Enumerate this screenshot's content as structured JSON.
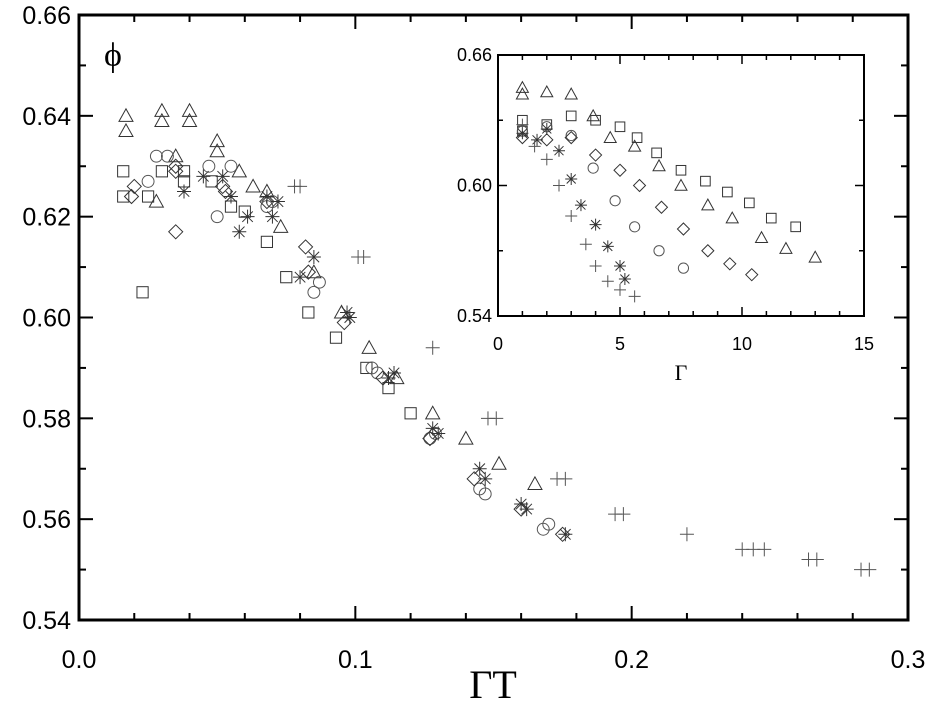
{
  "chart_data": [
    {
      "name": "main",
      "type": "scatter",
      "xlabel": "ΓT",
      "ylabel_annotation": "ϕ",
      "xlim": [
        0.0,
        0.3
      ],
      "ylim": [
        0.54,
        0.66
      ],
      "xticks": [
        "0.0",
        "0.1",
        "0.2",
        "0.3"
      ],
      "yticks": [
        "0.54",
        "0.56",
        "0.58",
        "0.60",
        "0.62",
        "0.64",
        "0.66"
      ],
      "grid": false,
      "series": [
        {
          "name": "triangles",
          "marker": "triangle",
          "color": "#333333",
          "points": [
            [
              0.017,
              0.64
            ],
            [
              0.017,
              0.637
            ],
            [
              0.03,
              0.641
            ],
            [
              0.03,
              0.639
            ],
            [
              0.04,
              0.641
            ],
            [
              0.04,
              0.639
            ],
            [
              0.05,
              0.635
            ],
            [
              0.05,
              0.633
            ],
            [
              0.058,
              0.629
            ],
            [
              0.063,
              0.626
            ],
            [
              0.068,
              0.625
            ],
            [
              0.073,
              0.618
            ],
            [
              0.085,
              0.609
            ],
            [
              0.095,
              0.601
            ],
            [
              0.105,
              0.594
            ],
            [
              0.115,
              0.588
            ],
            [
              0.128,
              0.581
            ],
            [
              0.14,
              0.576
            ],
            [
              0.152,
              0.571
            ],
            [
              0.165,
              0.567
            ],
            [
              0.028,
              0.623
            ],
            [
              0.035,
              0.632
            ]
          ]
        },
        {
          "name": "squares",
          "marker": "square",
          "color": "#333333",
          "points": [
            [
              0.016,
              0.624
            ],
            [
              0.016,
              0.629
            ],
            [
              0.023,
              0.605
            ],
            [
              0.025,
              0.624
            ],
            [
              0.038,
              0.627
            ],
            [
              0.048,
              0.627
            ],
            [
              0.055,
              0.622
            ],
            [
              0.06,
              0.621
            ],
            [
              0.068,
              0.615
            ],
            [
              0.075,
              0.608
            ],
            [
              0.083,
              0.601
            ],
            [
              0.093,
              0.596
            ],
            [
              0.104,
              0.59
            ],
            [
              0.112,
              0.586
            ],
            [
              0.12,
              0.581
            ],
            [
              0.038,
              0.629
            ],
            [
              0.03,
              0.629
            ]
          ]
        },
        {
          "name": "circles",
          "marker": "circle",
          "color": "#555555",
          "points": [
            [
              0.025,
              0.627
            ],
            [
              0.028,
              0.632
            ],
            [
              0.032,
              0.632
            ],
            [
              0.047,
              0.63
            ],
            [
              0.05,
              0.62
            ],
            [
              0.055,
              0.63
            ],
            [
              0.068,
              0.622
            ],
            [
              0.07,
              0.623
            ],
            [
              0.085,
              0.605
            ],
            [
              0.087,
              0.607
            ],
            [
              0.106,
              0.59
            ],
            [
              0.108,
              0.589
            ],
            [
              0.127,
              0.576
            ],
            [
              0.129,
              0.577
            ],
            [
              0.145,
              0.566
            ],
            [
              0.147,
              0.565
            ],
            [
              0.168,
              0.558
            ],
            [
              0.17,
              0.559
            ]
          ]
        },
        {
          "name": "diamonds",
          "marker": "diamond",
          "color": "#333333",
          "points": [
            [
              0.019,
              0.624
            ],
            [
              0.02,
              0.626
            ],
            [
              0.035,
              0.629
            ],
            [
              0.035,
              0.617
            ],
            [
              0.052,
              0.626
            ],
            [
              0.053,
              0.625
            ],
            [
              0.068,
              0.623
            ],
            [
              0.083,
              0.609
            ],
            [
              0.096,
              0.599
            ],
            [
              0.11,
              0.588
            ],
            [
              0.127,
              0.576
            ],
            [
              0.143,
              0.568
            ],
            [
              0.16,
              0.562
            ],
            [
              0.175,
              0.557
            ],
            [
              0.082,
              0.614
            ],
            [
              0.035,
              0.63
            ]
          ]
        },
        {
          "name": "asterisks",
          "marker": "asterisk",
          "color": "#333333",
          "points": [
            [
              0.038,
              0.625
            ],
            [
              0.045,
              0.628
            ],
            [
              0.055,
              0.624
            ],
            [
              0.058,
              0.617
            ],
            [
              0.061,
              0.62
            ],
            [
              0.068,
              0.624
            ],
            [
              0.07,
              0.62
            ],
            [
              0.072,
              0.623
            ],
            [
              0.08,
              0.608
            ],
            [
              0.085,
              0.612
            ],
            [
              0.098,
              0.6
            ],
            [
              0.097,
              0.601
            ],
            [
              0.112,
              0.588
            ],
            [
              0.114,
              0.589
            ],
            [
              0.128,
              0.578
            ],
            [
              0.13,
              0.577
            ],
            [
              0.145,
              0.57
            ],
            [
              0.147,
              0.568
            ],
            [
              0.16,
              0.563
            ],
            [
              0.162,
              0.562
            ],
            [
              0.176,
              0.557
            ],
            [
              0.052,
              0.628
            ]
          ]
        },
        {
          "name": "plus",
          "marker": "plus",
          "color": "#555555",
          "points": [
            [
              0.078,
              0.626
            ],
            [
              0.08,
              0.626
            ],
            [
              0.101,
              0.612
            ],
            [
              0.103,
              0.612
            ],
            [
              0.128,
              0.594
            ],
            [
              0.148,
              0.58
            ],
            [
              0.151,
              0.58
            ],
            [
              0.173,
              0.568
            ],
            [
              0.176,
              0.568
            ],
            [
              0.194,
              0.561
            ],
            [
              0.197,
              0.561
            ],
            [
              0.22,
              0.557
            ],
            [
              0.24,
              0.554
            ],
            [
              0.244,
              0.554
            ],
            [
              0.248,
              0.554
            ],
            [
              0.264,
              0.552
            ],
            [
              0.267,
              0.552
            ],
            [
              0.283,
              0.55
            ],
            [
              0.286,
              0.55
            ]
          ]
        }
      ]
    },
    {
      "name": "inset",
      "type": "scatter",
      "xlabel": "Γ",
      "xlim": [
        0,
        15
      ],
      "ylim": [
        0.54,
        0.66
      ],
      "xticks": [
        "0",
        "5",
        "10",
        "15"
      ],
      "yticks": [
        "0.54",
        "0.60",
        "0.66"
      ],
      "grid": false,
      "series": [
        {
          "name": "triangles",
          "marker": "triangle",
          "color": "#333333",
          "points": [
            [
              1.0,
              0.645
            ],
            [
              1.0,
              0.642
            ],
            [
              2.0,
              0.643
            ],
            [
              3.0,
              0.642
            ],
            [
              3.9,
              0.632
            ],
            [
              4.6,
              0.622
            ],
            [
              5.6,
              0.618
            ],
            [
              6.6,
              0.609
            ],
            [
              7.5,
              0.6
            ],
            [
              8.6,
              0.591
            ],
            [
              9.6,
              0.585
            ],
            [
              10.8,
              0.576
            ],
            [
              11.8,
              0.571
            ],
            [
              13.0,
              0.567
            ]
          ]
        },
        {
          "name": "squares",
          "marker": "square",
          "color": "#333333",
          "points": [
            [
              1.0,
              0.63
            ],
            [
              1.0,
              0.625
            ],
            [
              2.0,
              0.628
            ],
            [
              3.0,
              0.632
            ],
            [
              4.0,
              0.63
            ],
            [
              5.0,
              0.627
            ],
            [
              5.7,
              0.622
            ],
            [
              6.5,
              0.615
            ],
            [
              7.5,
              0.607
            ],
            [
              8.5,
              0.602
            ],
            [
              9.4,
              0.597
            ],
            [
              10.3,
              0.592
            ],
            [
              11.2,
              0.585
            ],
            [
              12.2,
              0.581
            ]
          ]
        },
        {
          "name": "circles",
          "marker": "circle",
          "color": "#555555",
          "points": [
            [
              1.0,
              0.625
            ],
            [
              2.0,
              0.627
            ],
            [
              3.0,
              0.623
            ],
            [
              3.9,
              0.608
            ],
            [
              4.8,
              0.593
            ],
            [
              5.6,
              0.581
            ],
            [
              6.6,
              0.57
            ],
            [
              7.6,
              0.562
            ]
          ]
        },
        {
          "name": "diamonds",
          "marker": "diamond",
          "color": "#333333",
          "points": [
            [
              1.0,
              0.622
            ],
            [
              2.0,
              0.621
            ],
            [
              3.0,
              0.622
            ],
            [
              4.0,
              0.614
            ],
            [
              5.0,
              0.607
            ],
            [
              5.8,
              0.6
            ],
            [
              6.7,
              0.59
            ],
            [
              7.6,
              0.58
            ],
            [
              8.6,
              0.57
            ],
            [
              9.5,
              0.564
            ],
            [
              10.4,
              0.559
            ]
          ]
        },
        {
          "name": "asterisks",
          "marker": "asterisk",
          "color": "#333333",
          "points": [
            [
              1.0,
              0.624
            ],
            [
              1.6,
              0.621
            ],
            [
              2.0,
              0.626
            ],
            [
              2.5,
              0.616
            ],
            [
              3.0,
              0.603
            ],
            [
              3.4,
              0.591
            ],
            [
              4.0,
              0.582
            ],
            [
              4.5,
              0.572
            ],
            [
              5.0,
              0.563
            ],
            [
              5.2,
              0.557
            ]
          ]
        },
        {
          "name": "plus",
          "marker": "plus",
          "color": "#555555",
          "points": [
            [
              1.0,
              0.628
            ],
            [
              1.5,
              0.618
            ],
            [
              2.0,
              0.612
            ],
            [
              2.5,
              0.6
            ],
            [
              3.0,
              0.586
            ],
            [
              3.6,
              0.573
            ],
            [
              4.0,
              0.563
            ],
            [
              4.5,
              0.556
            ],
            [
              5.0,
              0.552
            ],
            [
              5.6,
              0.549
            ]
          ]
        }
      ]
    }
  ]
}
